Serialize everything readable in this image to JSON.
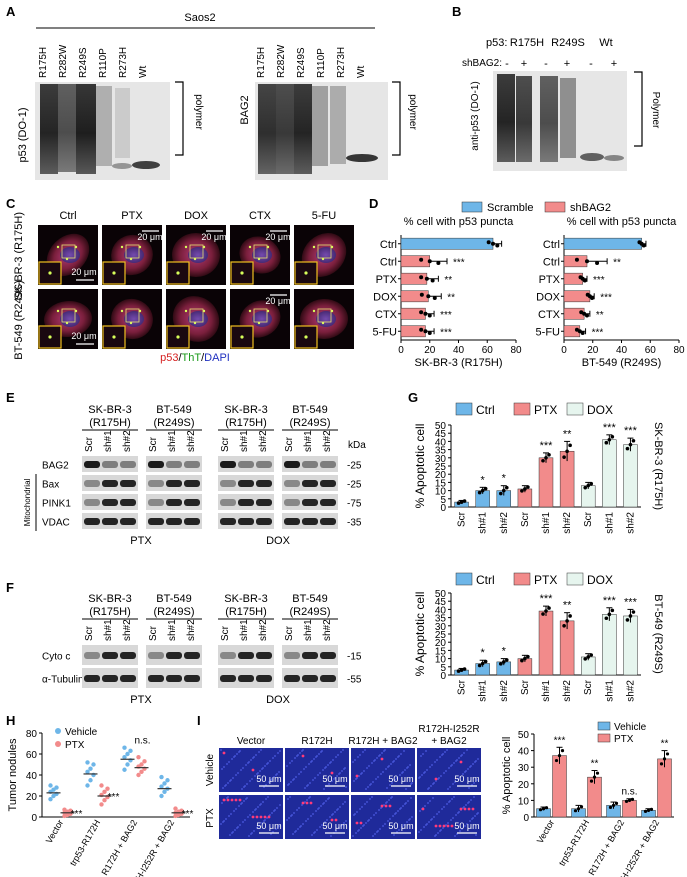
{
  "panel_letters": [
    "A",
    "B",
    "C",
    "D",
    "E",
    "F",
    "G",
    "H",
    "I"
  ],
  "A": {
    "cell_line": "Saos2",
    "mutants": [
      "R175H",
      "R282W",
      "R249S",
      "R110P",
      "R273H",
      "Wt"
    ],
    "left_ylabel": "p53 (DO-1)",
    "right_ylabel": "BAG2",
    "polymer_label": "polymer"
  },
  "B": {
    "p53_label": "p53:",
    "groups": [
      "R175H",
      "R249S",
      "Wt"
    ],
    "sh_label": "shBAG2:",
    "signs": [
      "-",
      "+",
      "-",
      "+",
      "-",
      "+"
    ],
    "ylabel": "anti-p53 (DO-1)",
    "polymer_label": "Polymer"
  },
  "C": {
    "columns": [
      "Ctrl",
      "PTX",
      "DOX",
      "CTX",
      "5-FU"
    ],
    "rows": [
      "SK-BR-3 (R175H)",
      "BT-549 (R249S)"
    ],
    "scale": "20 μm",
    "legend": {
      "p53": "p53",
      "sep1": "/",
      "tht": "ThT",
      "sep2": "/",
      "dapi": "DAPI"
    }
  },
  "D": {
    "legend": [
      "Scramble",
      "shBAG2"
    ],
    "colors": {
      "scramble": "#6EB6E8",
      "shbag2": "#F28B8B"
    },
    "chart_data": [
      {
        "type": "bar",
        "title": "% cell with p53 puncta",
        "xlabel": "SK-BR-3 (R175H)",
        "categories": [
          "Ctrl",
          "Ctrl",
          "PTX",
          "DOX",
          "CTX",
          "5-FU"
        ],
        "series": [
          {
            "name": "Scramble",
            "values": [
              64,
              null,
              null,
              null,
              null,
              null
            ]
          },
          {
            "name": "shBAG2",
            "values": [
              null,
              20,
              18,
              19,
              17,
              17
            ]
          }
        ],
        "errors": [
          6,
          12,
          8,
          9,
          6,
          6
        ],
        "sig": [
          "",
          "***",
          "**",
          "**",
          "***",
          "***"
        ],
        "xlim": [
          0,
          80
        ],
        "ticks": [
          0,
          20,
          40,
          60,
          80
        ]
      },
      {
        "type": "bar",
        "title": "% cell with p53 puncta",
        "xlabel": "BT-549 (R249S)",
        "categories": [
          "Ctrl",
          "Ctrl",
          "PTX",
          "DOX",
          "CTX",
          "5-FU"
        ],
        "series": [
          {
            "name": "Scramble",
            "values": [
              54,
              null,
              null,
              null,
              null,
              null
            ]
          },
          {
            "name": "shBAG2",
            "values": [
              null,
              16,
              13,
              18,
              14,
              11
            ]
          }
        ],
        "errors": [
          3,
          14,
          3,
          3,
          4,
          4
        ],
        "sig": [
          "",
          "**",
          "***",
          "***",
          "**",
          "***"
        ],
        "xlim": [
          0,
          80
        ],
        "ticks": [
          0,
          20,
          40,
          60,
          80
        ]
      }
    ]
  },
  "E": {
    "groups": [
      "SK-BR-3 (R175H)",
      "BT-549 (R249S)",
      "SK-BR-3 (R175H)",
      "BT-549 (R249S)"
    ],
    "lanes": [
      "Scr",
      "sh#1",
      "sh#2"
    ],
    "kda": "kDa",
    "proteins": [
      "BAG2",
      "Bax",
      "PINK1",
      "VDAC"
    ],
    "markers": [
      "25",
      "25",
      "75",
      "35"
    ],
    "side_label": "Mitochondrial",
    "treatments": [
      "PTX",
      "DOX"
    ]
  },
  "F": {
    "groups": [
      "SK-BR-3 (R175H)",
      "BT-549 (R249S)",
      "SK-BR-3 (R175H)",
      "BT-549 (R249S)"
    ],
    "lanes": [
      "Scr",
      "sh#1",
      "sh#2"
    ],
    "proteins": [
      "Cyto c",
      "α-Tubulin"
    ],
    "markers": [
      "15",
      "55"
    ],
    "treatments": [
      "PTX",
      "DOX"
    ]
  },
  "G": {
    "legend": [
      "Ctrl",
      "PTX",
      "DOX"
    ],
    "colors": {
      "ctrl": "#6EB6E8",
      "ptx": "#F28B8B",
      "dox": "#E6F5EE"
    },
    "chart_data": [
      {
        "type": "bar",
        "ylabel": "% Apoptotic cell",
        "side_label": "SK-BR-3 (R175H)",
        "categories": [
          "Scr",
          "sh#1",
          "sh#2",
          "Scr",
          "sh#1",
          "sh#2",
          "Scr",
          "sh#1",
          "sh#2"
        ],
        "values": [
          3,
          10,
          10,
          11,
          30,
          34,
          13,
          41,
          38
        ],
        "errors": [
          1,
          2,
          3,
          2,
          3,
          6,
          2,
          3,
          4
        ],
        "sig": [
          "",
          "*",
          "*",
          "",
          "***",
          "**",
          "",
          "***",
          "***"
        ],
        "ylim": [
          0,
          50
        ],
        "ticks": [
          0,
          5,
          10,
          15,
          20,
          25,
          30,
          35,
          40,
          45,
          50
        ]
      },
      {
        "type": "bar",
        "ylabel": "% Apoptotic cell",
        "side_label": "BT-549 (R249S)",
        "categories": [
          "Scr",
          "sh#1",
          "sh#2",
          "Scr",
          "sh#1",
          "sh#2",
          "Scr",
          "sh#1",
          "sh#2"
        ],
        "values": [
          3,
          7,
          8,
          10,
          39,
          33,
          11,
          37,
          36
        ],
        "errors": [
          1,
          2,
          2,
          2,
          3,
          5,
          2,
          4,
          4
        ],
        "sig": [
          "",
          "*",
          "*",
          "",
          "***",
          "**",
          "",
          "***",
          "***"
        ],
        "ylim": [
          0,
          50
        ],
        "ticks": [
          0,
          5,
          10,
          15,
          20,
          25,
          30,
          35,
          40,
          45,
          50
        ]
      }
    ]
  },
  "H": {
    "legend": [
      "Vehicle",
      "PTX"
    ],
    "colors": {
      "vehicle": "#6EB6E8",
      "ptx": "#F28B8B"
    },
    "chart_data": {
      "type": "scatter",
      "ylabel": "Tumor nodules",
      "categories": [
        "Vector",
        "trp53-R172H",
        "R172H + BAG2",
        "R172H-I252R + BAG2"
      ],
      "series": [
        {
          "name": "Vehicle",
          "means": [
            23,
            41,
            55,
            27
          ],
          "points": [
            [
              17,
              20,
              22,
              24,
              26,
              28,
              30
            ],
            [
              30,
              35,
              40,
              43,
              46,
              50,
              52
            ],
            [
              45,
              50,
              54,
              57,
              60,
              63,
              66
            ],
            [
              20,
              24,
              27,
              29,
              32,
              35,
              38
            ]
          ]
        },
        {
          "name": "PTX",
          "means": [
            4,
            20,
            47,
            4
          ],
          "points": [
            [
              1,
              2,
              3,
              4,
              5,
              6,
              7
            ],
            [
              12,
              16,
              19,
              21,
              24,
              27,
              30
            ],
            [
              40,
              43,
              46,
              48,
              50,
              53,
              57
            ],
            [
              1,
              2,
              3,
              4,
              5,
              6,
              8
            ]
          ]
        }
      ],
      "sig": [
        "***",
        "***",
        "n.s.",
        "***"
      ],
      "ylim": [
        0,
        80
      ],
      "ticks": [
        0,
        20,
        40,
        60,
        80
      ]
    }
  },
  "I": {
    "columns": [
      "Vector",
      "R172H",
      "R172H + BAG2",
      "R172H-I252R + BAG2"
    ],
    "rows": [
      "Vehicle",
      "PTX"
    ],
    "scale": "50 μm",
    "legend": [
      "Vehicle",
      "PTX"
    ],
    "colors": {
      "vehicle": "#6EB6E8",
      "ptx": "#F28B8B"
    },
    "chart_data": {
      "type": "bar",
      "ylabel": "% Apoptotic cell",
      "categories": [
        "Vector",
        "trp53-R172H",
        "R172H + BAG2",
        "R172H-I252R + BAG2"
      ],
      "series": [
        {
          "name": "Vehicle",
          "values": [
            5,
            5,
            7,
            4
          ]
        },
        {
          "name": "PTX",
          "values": [
            37,
            24,
            10,
            35
          ]
        }
      ],
      "errors": [
        [
          1,
          2,
          2,
          1
        ],
        [
          5,
          4,
          1,
          5
        ]
      ],
      "sig": [
        "***",
        "**",
        "n.s.",
        "**"
      ],
      "ylim": [
        0,
        50
      ],
      "ticks": [
        0,
        10,
        20,
        30,
        40,
        50
      ]
    }
  }
}
